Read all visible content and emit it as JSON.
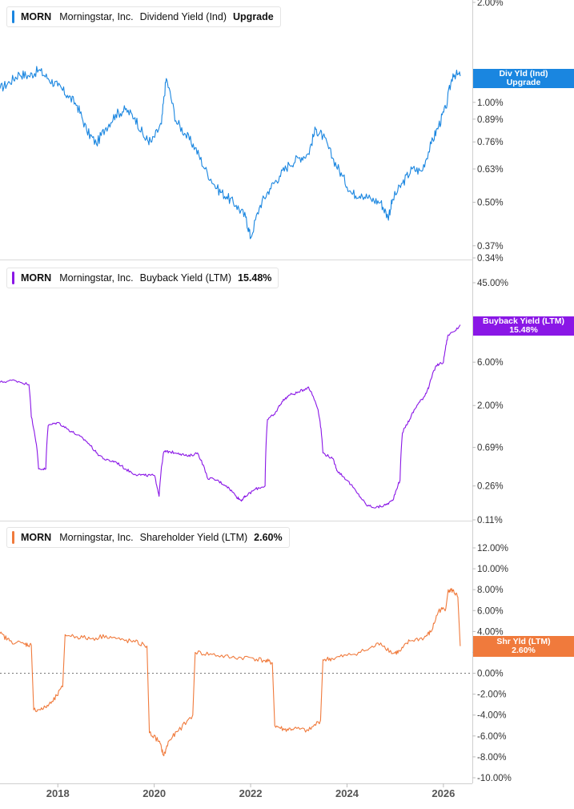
{
  "chart_data": [
    {
      "type": "line",
      "legend": {
        "ticker": "MORN",
        "company": "Morningstar, Inc.",
        "metric": "Dividend Yield (Ind)",
        "value": "Upgrade"
      },
      "flag": {
        "line1": "Div Yld (Ind)",
        "line2": "Upgrade"
      },
      "color": "#1a86e0",
      "scale": "log",
      "ylim": [
        0.34,
        2.0
      ],
      "y_ticks": [
        {
          "value": 2.0,
          "label": "2.00%"
        },
        {
          "value": 1.0,
          "label": "1.00%"
        },
        {
          "value": 0.89,
          "label": "0.89%"
        },
        {
          "value": 0.76,
          "label": "0.76%"
        },
        {
          "value": 0.63,
          "label": "0.63%"
        },
        {
          "value": 0.5,
          "label": "0.50%"
        },
        {
          "value": 0.37,
          "label": "0.37%"
        },
        {
          "value": 0.34,
          "label": "0.34%"
        }
      ],
      "x": [
        2016.8,
        2017.0,
        2017.2,
        2017.4,
        2017.6,
        2017.8,
        2018.0,
        2018.2,
        2018.4,
        2018.6,
        2018.8,
        2019.0,
        2019.2,
        2019.4,
        2019.6,
        2019.8,
        2019.95,
        2020.15,
        2020.25,
        2020.45,
        2020.65,
        2020.85,
        2021.05,
        2021.3,
        2021.5,
        2021.7,
        2021.9,
        2022.0,
        2022.2,
        2022.4,
        2022.6,
        2022.8,
        2023.0,
        2023.2,
        2023.35,
        2023.5,
        2023.7,
        2023.9,
        2024.1,
        2024.3,
        2024.5,
        2024.7,
        2024.85,
        2024.95,
        2025.15,
        2025.35,
        2025.55,
        2025.75,
        2025.9,
        2026.05,
        2026.2,
        2026.35
      ],
      "y": [
        1.1,
        1.15,
        1.22,
        1.2,
        1.25,
        1.18,
        1.12,
        1.05,
        0.98,
        0.82,
        0.75,
        0.84,
        0.92,
        0.95,
        0.9,
        0.78,
        0.76,
        0.86,
        1.18,
        0.88,
        0.8,
        0.73,
        0.63,
        0.55,
        0.52,
        0.49,
        0.45,
        0.39,
        0.49,
        0.55,
        0.6,
        0.65,
        0.68,
        0.7,
        0.83,
        0.79,
        0.68,
        0.6,
        0.53,
        0.53,
        0.51,
        0.5,
        0.45,
        0.51,
        0.57,
        0.63,
        0.62,
        0.75,
        0.85,
        0.96,
        1.22,
        1.2
      ]
    },
    {
      "type": "line",
      "legend": {
        "ticker": "MORN",
        "company": "Morningstar, Inc.",
        "metric": "Buyback Yield (LTM)",
        "value": "15.48%"
      },
      "flag": {
        "line1": "Buyback Yield (LTM)",
        "line2": "15.48%"
      },
      "color": "#8a17e6",
      "scale": "log",
      "ylim": [
        0.11,
        45.0
      ],
      "y_ticks": [
        {
          "value": 45.0,
          "label": "45.00%"
        },
        {
          "value": 6.0,
          "label": "6.00%"
        },
        {
          "value": 2.0,
          "label": "2.00%"
        },
        {
          "value": 0.69,
          "label": "0.69%"
        },
        {
          "value": 0.26,
          "label": "0.26%"
        },
        {
          "value": 0.11,
          "label": "0.11%"
        }
      ],
      "x": [
        2016.8,
        2017.1,
        2017.4,
        2017.45,
        2017.6,
        2017.75,
        2017.8,
        2018.0,
        2018.2,
        2018.4,
        2018.6,
        2018.8,
        2019.0,
        2019.2,
        2019.4,
        2019.6,
        2019.8,
        2020.0,
        2020.1,
        2020.2,
        2020.3,
        2020.5,
        2020.7,
        2020.9,
        2021.1,
        2021.3,
        2021.5,
        2021.7,
        2021.8,
        2021.9,
        2022.1,
        2022.3,
        2022.35,
        2022.5,
        2022.65,
        2022.8,
        2023.0,
        2023.2,
        2023.4,
        2023.5,
        2023.7,
        2023.8,
        2024.0,
        2024.2,
        2024.4,
        2024.6,
        2024.8,
        2024.95,
        2025.1,
        2025.15,
        2025.3,
        2025.45,
        2025.6,
        2025.7,
        2025.85,
        2026.0,
        2026.1,
        2026.3,
        2026.35
      ],
      "y": [
        3.6,
        3.8,
        3.4,
        1.5,
        0.4,
        0.4,
        1.2,
        1.3,
        1.1,
        0.95,
        0.8,
        0.6,
        0.5,
        0.48,
        0.4,
        0.35,
        0.34,
        0.34,
        0.2,
        0.62,
        0.62,
        0.6,
        0.55,
        0.6,
        0.32,
        0.3,
        0.26,
        0.2,
        0.18,
        0.2,
        0.24,
        0.26,
        1.4,
        1.6,
        2.2,
        2.6,
        2.8,
        3.2,
        1.8,
        0.6,
        0.52,
        0.38,
        0.3,
        0.22,
        0.16,
        0.15,
        0.16,
        0.18,
        0.3,
        1.0,
        1.4,
        2.0,
        2.5,
        3.2,
        5.5,
        6.0,
        12.0,
        14.0,
        15.48
      ]
    },
    {
      "type": "line",
      "legend": {
        "ticker": "MORN",
        "company": "Morningstar, Inc.",
        "metric": "Shareholder Yield (LTM)",
        "value": "2.60%"
      },
      "flag": {
        "line1": "Shr Yld (LTM)",
        "line2": "2.60%"
      },
      "color": "#f07a3c",
      "scale": "linear",
      "ylim": [
        -10.0,
        12.0
      ],
      "y_ticks": [
        {
          "value": 12.0,
          "label": "12.00%"
        },
        {
          "value": 10.0,
          "label": "10.00%"
        },
        {
          "value": 8.0,
          "label": "8.00%"
        },
        {
          "value": 6.0,
          "label": "6.00%"
        },
        {
          "value": 4.0,
          "label": "4.00%"
        },
        {
          "value": 2.0,
          "label": "2.00%"
        },
        {
          "value": 0.0,
          "label": "0.00%"
        },
        {
          "value": -2.0,
          "label": "-2.00%"
        },
        {
          "value": -4.0,
          "label": "-4.00%"
        },
        {
          "value": -6.0,
          "label": "-6.00%"
        },
        {
          "value": -8.0,
          "label": "-8.00%"
        },
        {
          "value": -10.0,
          "label": "-10.00%"
        }
      ],
      "zero_line": true,
      "x": [
        2016.8,
        2017.0,
        2017.3,
        2017.45,
        2017.5,
        2017.7,
        2017.9,
        2018.1,
        2018.15,
        2018.4,
        2018.7,
        2019.0,
        2019.3,
        2019.6,
        2019.85,
        2019.9,
        2020.1,
        2020.2,
        2020.3,
        2020.5,
        2020.8,
        2020.85,
        2021.2,
        2021.6,
        2022.0,
        2022.3,
        2022.45,
        2022.5,
        2022.7,
        2022.9,
        2023.2,
        2023.45,
        2023.5,
        2023.7,
        2024.0,
        2024.4,
        2024.7,
        2024.95,
        2025.1,
        2025.3,
        2025.6,
        2025.75,
        2025.9,
        2026.05,
        2026.1,
        2026.2,
        2026.3,
        2026.35
      ],
      "y": [
        3.8,
        3.1,
        2.8,
        2.7,
        -3.5,
        -3.4,
        -2.7,
        -1.3,
        3.7,
        3.5,
        3.3,
        3.6,
        3.2,
        3.0,
        2.6,
        -5.7,
        -6.5,
        -7.9,
        -6.5,
        -5.5,
        -4.0,
        2.0,
        1.8,
        1.5,
        1.5,
        1.2,
        1.0,
        -5.0,
        -5.4,
        -5.3,
        -5.5,
        -4.5,
        1.3,
        1.4,
        1.7,
        2.2,
        2.9,
        1.9,
        2.1,
        3.1,
        3.4,
        4.0,
        6.0,
        6.2,
        8.0,
        7.9,
        7.3,
        2.6
      ]
    }
  ],
  "x_axis": {
    "xlim": [
      2016.8,
      2026.6
    ],
    "ticks": [
      {
        "value": 2018,
        "label": "2018"
      },
      {
        "value": 2020,
        "label": "2020"
      },
      {
        "value": 2022,
        "label": "2022"
      },
      {
        "value": 2024,
        "label": "2024"
      },
      {
        "value": 2026,
        "label": "2026"
      }
    ]
  }
}
